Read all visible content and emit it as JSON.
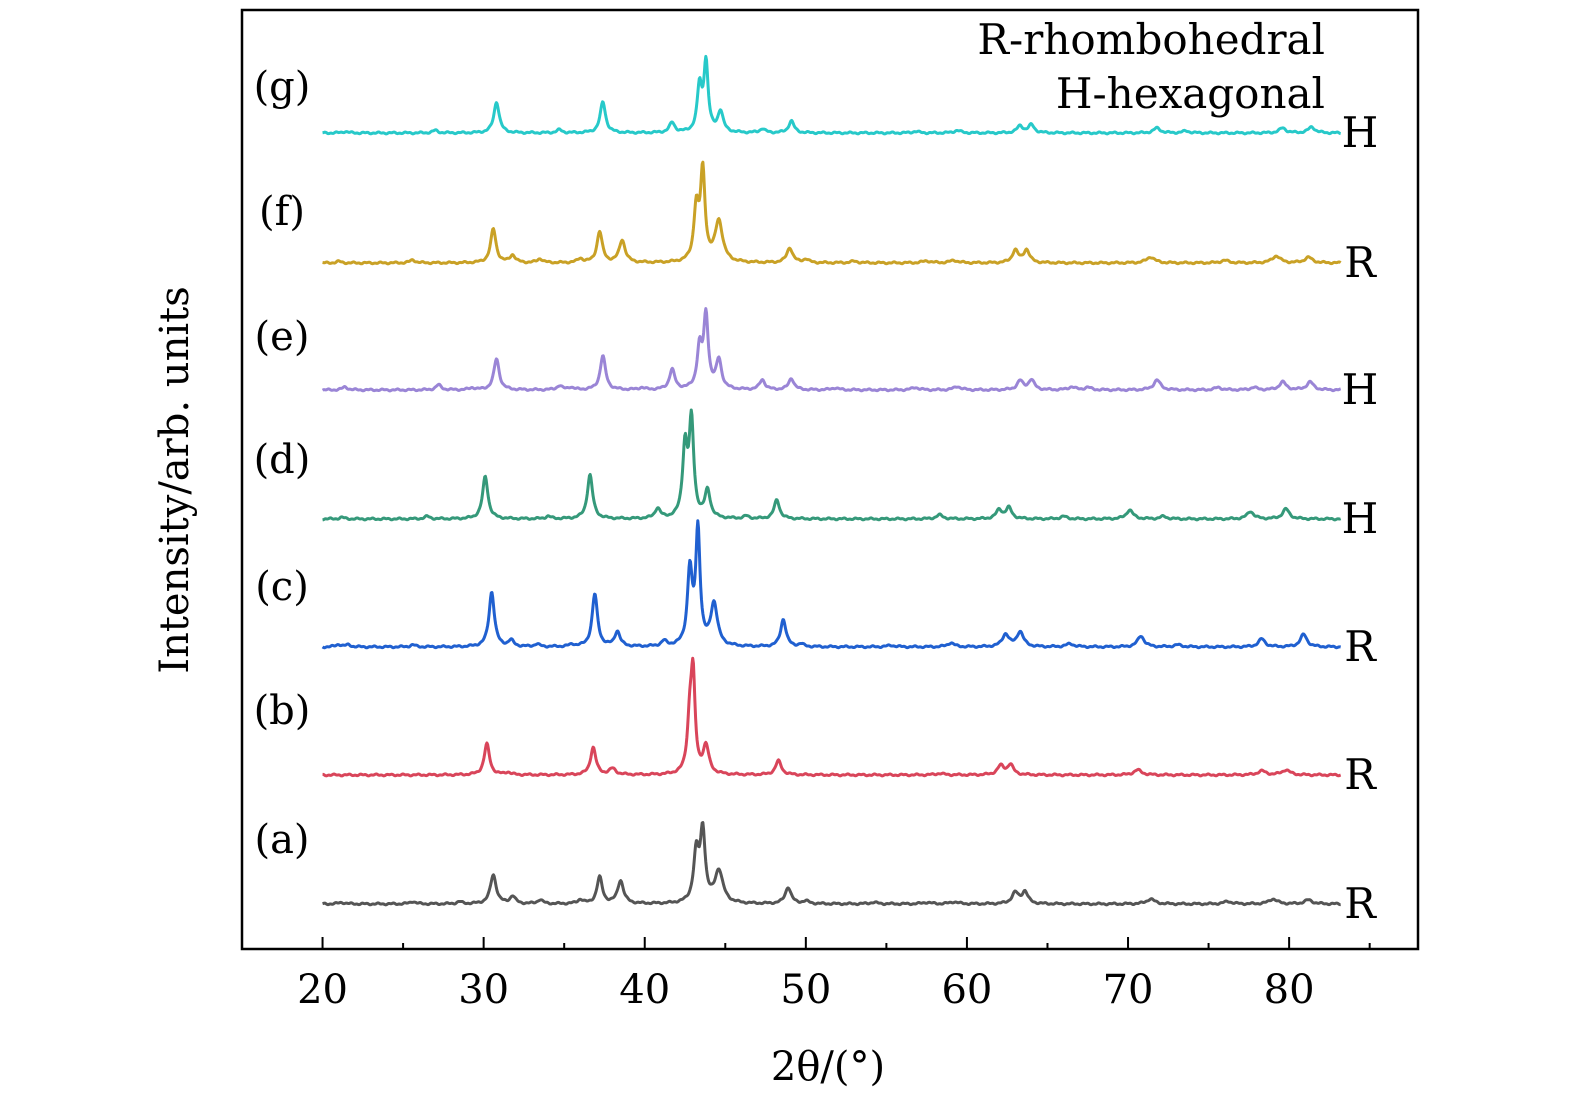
{
  "chart_data": {
    "type": "line",
    "xlabel": "2θ/(°)",
    "ylabel": "Intensity/arb. units",
    "xlim": [
      15,
      88
    ],
    "x_ticks": [
      20,
      30,
      40,
      50,
      60,
      70,
      80
    ],
    "x_range": [
      20,
      83.2
    ],
    "legend_placement": "top-right",
    "legend_lines": [
      "R-rhombohedral",
      "H-hexagonal"
    ],
    "grid": false,
    "series": [
      {
        "name": "(a)",
        "phase": "R",
        "color": "#555555",
        "baseline": 0.0,
        "peaks": [
          [
            21.2,
            0.03,
            0.25
          ],
          [
            25.6,
            0.05,
            0.2
          ],
          [
            28.5,
            0.04,
            0.2
          ],
          [
            30.6,
            0.58,
            0.22
          ],
          [
            31.8,
            0.15,
            0.2
          ],
          [
            33.5,
            0.08,
            0.2
          ],
          [
            36.0,
            0.08,
            0.2
          ],
          [
            37.2,
            0.53,
            0.2
          ],
          [
            38.5,
            0.46,
            0.22
          ],
          [
            43.2,
            0.98,
            0.2
          ],
          [
            43.6,
            1.4,
            0.18
          ],
          [
            44.6,
            0.65,
            0.3
          ],
          [
            48.9,
            0.33,
            0.22
          ],
          [
            50.0,
            0.05,
            0.25
          ],
          [
            54.2,
            0.03,
            0.3
          ],
          [
            57.5,
            0.03,
            0.3
          ],
          [
            59.2,
            0.04,
            0.3
          ],
          [
            63.0,
            0.22,
            0.25
          ],
          [
            63.6,
            0.24,
            0.22
          ],
          [
            71.4,
            0.1,
            0.3
          ],
          [
            76.2,
            0.05,
            0.3
          ],
          [
            79.0,
            0.1,
            0.3
          ],
          [
            81.2,
            0.08,
            0.3
          ]
        ]
      },
      {
        "name": "(b)",
        "phase": "R",
        "color": "#d9455a",
        "baseline": 0.0,
        "peaks": [
          [
            30.2,
            0.62,
            0.2
          ],
          [
            31.5,
            0.05,
            0.2
          ],
          [
            36.8,
            0.55,
            0.2
          ],
          [
            38.0,
            0.12,
            0.25
          ],
          [
            42.8,
            1.05,
            0.18
          ],
          [
            43.0,
            1.8,
            0.15
          ],
          [
            43.8,
            0.55,
            0.22
          ],
          [
            48.3,
            0.28,
            0.22
          ],
          [
            58.3,
            0.03,
            0.3
          ],
          [
            62.1,
            0.18,
            0.25
          ],
          [
            62.7,
            0.2,
            0.22
          ],
          [
            70.6,
            0.1,
            0.3
          ],
          [
            78.3,
            0.08,
            0.3
          ],
          [
            79.8,
            0.1,
            0.3
          ]
        ]
      },
      {
        "name": "(c)",
        "phase": "R",
        "color": "#2060d0",
        "baseline": 0.0,
        "peaks": [
          [
            21.0,
            0.05,
            0.2
          ],
          [
            21.6,
            0.04,
            0.2
          ],
          [
            25.6,
            0.04,
            0.2
          ],
          [
            30.5,
            1.1,
            0.2
          ],
          [
            31.7,
            0.12,
            0.2
          ],
          [
            33.3,
            0.05,
            0.2
          ],
          [
            35.5,
            0.04,
            0.2
          ],
          [
            36.9,
            1.05,
            0.2
          ],
          [
            38.3,
            0.3,
            0.2
          ],
          [
            41.2,
            0.1,
            0.2
          ],
          [
            42.8,
            1.5,
            0.18
          ],
          [
            43.3,
            2.3,
            0.16
          ],
          [
            44.3,
            0.85,
            0.25
          ],
          [
            48.6,
            0.55,
            0.2
          ],
          [
            49.7,
            0.05,
            0.2
          ],
          [
            55.3,
            0.03,
            0.3
          ],
          [
            59.0,
            0.08,
            0.25
          ],
          [
            62.4,
            0.25,
            0.25
          ],
          [
            63.3,
            0.3,
            0.25
          ],
          [
            66.4,
            0.06,
            0.3
          ],
          [
            70.8,
            0.22,
            0.25
          ],
          [
            73.1,
            0.04,
            0.3
          ],
          [
            78.3,
            0.16,
            0.25
          ],
          [
            80.9,
            0.25,
            0.25
          ]
        ]
      },
      {
        "name": "(d)",
        "phase": "H",
        "color": "#35997a",
        "baseline": 0.0,
        "peaks": [
          [
            21.2,
            0.03,
            0.2
          ],
          [
            26.5,
            0.05,
            0.2
          ],
          [
            30.1,
            0.85,
            0.2
          ],
          [
            34.0,
            0.05,
            0.2
          ],
          [
            36.6,
            0.88,
            0.2
          ],
          [
            40.8,
            0.2,
            0.2
          ],
          [
            42.5,
            1.4,
            0.18
          ],
          [
            42.9,
            1.9,
            0.17
          ],
          [
            43.9,
            0.55,
            0.2
          ],
          [
            46.3,
            0.05,
            0.2
          ],
          [
            48.2,
            0.38,
            0.2
          ],
          [
            58.3,
            0.08,
            0.25
          ],
          [
            62.0,
            0.18,
            0.22
          ],
          [
            62.6,
            0.22,
            0.22
          ],
          [
            66.0,
            0.05,
            0.25
          ],
          [
            70.1,
            0.18,
            0.25
          ],
          [
            72.2,
            0.05,
            0.25
          ],
          [
            77.6,
            0.15,
            0.25
          ],
          [
            79.8,
            0.2,
            0.25
          ]
        ]
      },
      {
        "name": "(e)",
        "phase": "H",
        "color": "#9a85d6",
        "baseline": 0.0,
        "peaks": [
          [
            21.4,
            0.06,
            0.2
          ],
          [
            27.2,
            0.1,
            0.2
          ],
          [
            29.3,
            0.04,
            0.2
          ],
          [
            30.8,
            0.62,
            0.2
          ],
          [
            34.7,
            0.08,
            0.2
          ],
          [
            35.4,
            0.05,
            0.2
          ],
          [
            37.4,
            0.68,
            0.2
          ],
          [
            39.8,
            0.04,
            0.2
          ],
          [
            41.7,
            0.4,
            0.2
          ],
          [
            43.4,
            0.8,
            0.18
          ],
          [
            43.8,
            1.45,
            0.17
          ],
          [
            44.6,
            0.58,
            0.2
          ],
          [
            47.3,
            0.2,
            0.2
          ],
          [
            49.1,
            0.23,
            0.2
          ],
          [
            51.8,
            0.04,
            0.25
          ],
          [
            56.8,
            0.05,
            0.25
          ],
          [
            59.4,
            0.07,
            0.25
          ],
          [
            63.3,
            0.18,
            0.22
          ],
          [
            64.0,
            0.2,
            0.22
          ],
          [
            66.5,
            0.06,
            0.25
          ],
          [
            67.5,
            0.05,
            0.25
          ],
          [
            71.8,
            0.2,
            0.25
          ],
          [
            75.6,
            0.05,
            0.25
          ],
          [
            77.8,
            0.05,
            0.25
          ],
          [
            79.6,
            0.16,
            0.25
          ],
          [
            81.3,
            0.16,
            0.25
          ]
        ]
      },
      {
        "name": "(f)",
        "phase": "R",
        "color": "#c9a126",
        "baseline": 0.0,
        "peaks": [
          [
            21.0,
            0.03,
            0.2
          ],
          [
            25.6,
            0.06,
            0.2
          ],
          [
            30.6,
            0.68,
            0.2
          ],
          [
            31.8,
            0.15,
            0.2
          ],
          [
            33.5,
            0.08,
            0.2
          ],
          [
            36.0,
            0.08,
            0.2
          ],
          [
            37.2,
            0.62,
            0.2
          ],
          [
            38.6,
            0.45,
            0.22
          ],
          [
            43.2,
            1.05,
            0.18
          ],
          [
            43.6,
            1.78,
            0.17
          ],
          [
            44.6,
            0.82,
            0.28
          ],
          [
            49.0,
            0.3,
            0.22
          ],
          [
            50.0,
            0.07,
            0.2
          ],
          [
            53.0,
            0.03,
            0.3
          ],
          [
            57.5,
            0.04,
            0.3
          ],
          [
            59.2,
            0.05,
            0.3
          ],
          [
            63.0,
            0.25,
            0.22
          ],
          [
            63.7,
            0.26,
            0.22
          ],
          [
            71.4,
            0.12,
            0.3
          ],
          [
            76.0,
            0.05,
            0.3
          ],
          [
            79.2,
            0.14,
            0.3
          ],
          [
            81.2,
            0.11,
            0.3
          ]
        ]
      },
      {
        "name": "(g)",
        "phase": "H",
        "color": "#27c9c9",
        "baseline": 0.0,
        "peaks": [
          [
            21.4,
            0.03,
            0.2
          ],
          [
            27.0,
            0.05,
            0.2
          ],
          [
            30.8,
            0.62,
            0.2
          ],
          [
            34.7,
            0.06,
            0.2
          ],
          [
            37.4,
            0.62,
            0.2
          ],
          [
            41.7,
            0.2,
            0.2
          ],
          [
            43.4,
            0.9,
            0.17
          ],
          [
            43.8,
            1.38,
            0.16
          ],
          [
            44.7,
            0.42,
            0.2
          ],
          [
            47.3,
            0.08,
            0.2
          ],
          [
            49.1,
            0.24,
            0.2
          ],
          [
            56.8,
            0.03,
            0.25
          ],
          [
            59.4,
            0.05,
            0.25
          ],
          [
            63.3,
            0.14,
            0.22
          ],
          [
            64.0,
            0.16,
            0.22
          ],
          [
            71.8,
            0.1,
            0.25
          ],
          [
            73.6,
            0.04,
            0.25
          ],
          [
            79.6,
            0.1,
            0.25
          ],
          [
            81.4,
            0.12,
            0.25
          ]
        ]
      }
    ]
  }
}
